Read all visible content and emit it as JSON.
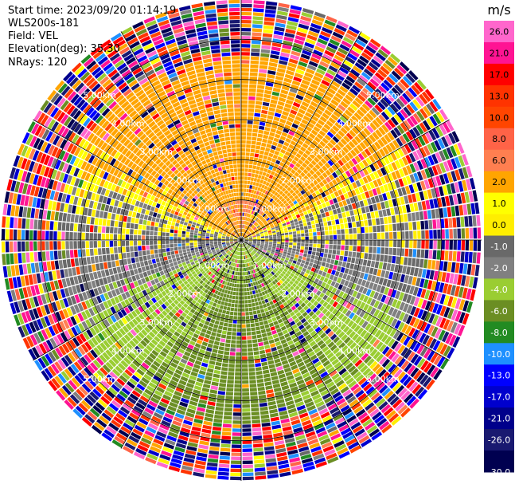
{
  "info": {
    "start_time_label": "Start time: 2023/09/20 01:14:19",
    "instrument": "WLS200s-181",
    "field_label": "Field: VEL",
    "elevation_label": "Elevation(deg): 35.30",
    "nrays_label": "NRays: 120"
  },
  "chart_data": {
    "type": "heatmap",
    "projection": "polar-ppi",
    "field": "VEL",
    "units": "m/s",
    "nrays": 120,
    "elevation_deg": 35.3,
    "max_range_km": 6.0,
    "range_rings_km": [
      1,
      2,
      3,
      4,
      5
    ],
    "ring_labels": [
      "1.00km",
      "2.00km",
      "3.00km",
      "4.00km",
      "5.00km"
    ],
    "spokes_deg": [
      0,
      30,
      60,
      90,
      120,
      150,
      180,
      210,
      240,
      270,
      300,
      330
    ],
    "colorbar": {
      "label": "m/s",
      "range": [
        -30,
        30
      ],
      "ticks": [
        "26.0",
        "21.0",
        "17.0",
        "13.0",
        "10.0",
        "8.0",
        "6.0",
        "2.0",
        "1.0",
        "0.0",
        "-1.0",
        "-2.0",
        "-4.0",
        "-6.0",
        "-8.0",
        "-10.0",
        "-13.0",
        "-17.0",
        "-21.0",
        "-26.0",
        "-30.0"
      ],
      "bins": [
        {
          "from": 26,
          "to": 30,
          "color": "#ff66cc"
        },
        {
          "from": 21,
          "to": 26,
          "color": "#ff1493"
        },
        {
          "from": 17,
          "to": 21,
          "color": "#ff0000"
        },
        {
          "from": 13,
          "to": 17,
          "color": "#ff3300"
        },
        {
          "from": 10,
          "to": 13,
          "color": "#ff4500"
        },
        {
          "from": 8,
          "to": 10,
          "color": "#ff6347"
        },
        {
          "from": 6,
          "to": 8,
          "color": "#ff7f50"
        },
        {
          "from": 2,
          "to": 6,
          "color": "#ffa500"
        },
        {
          "from": 1,
          "to": 2,
          "color": "#ffff00"
        },
        {
          "from": 0,
          "to": 1,
          "color": "#ffee00"
        },
        {
          "from": -1,
          "to": 0,
          "color": "#696969"
        },
        {
          "from": -2,
          "to": -1,
          "color": "#808080"
        },
        {
          "from": -4,
          "to": -2,
          "color": "#9acd32"
        },
        {
          "from": -6,
          "to": -4,
          "color": "#6b8e23"
        },
        {
          "from": -8,
          "to": -6,
          "color": "#228b22"
        },
        {
          "from": -10,
          "to": -8,
          "color": "#1e90ff"
        },
        {
          "from": -13,
          "to": -10,
          "color": "#0000ff"
        },
        {
          "from": -17,
          "to": -13,
          "color": "#0000cd"
        },
        {
          "from": -21,
          "to": -17,
          "color": "#00008b"
        },
        {
          "from": -26,
          "to": -21,
          "color": "#191970"
        },
        {
          "from": -30,
          "to": -26,
          "color": "#000050"
        }
      ]
    },
    "wind": {
      "toward_azimuth_deg": 0,
      "radial_peak_ms": 4.0,
      "clear_range_km": 4.6
    }
  }
}
